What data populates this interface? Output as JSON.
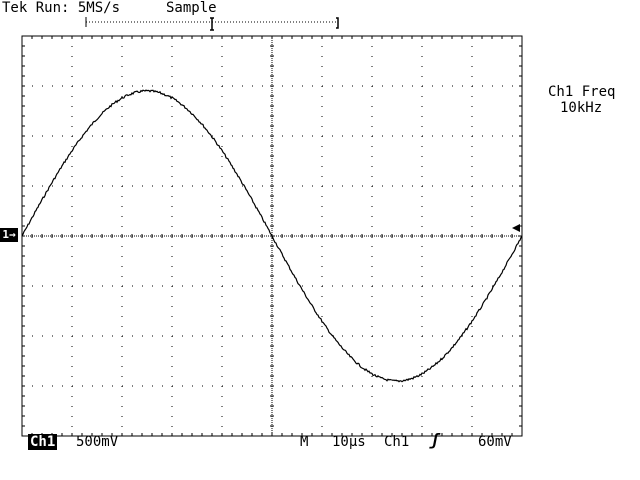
{
  "status": {
    "run_label": "Tek Run: 5MS/s",
    "mode_label": "Sample"
  },
  "side_readout": {
    "title": "Ch1 Freq",
    "value": "10kHz"
  },
  "bottom_bar": {
    "channel_label": "Ch1",
    "volts_per_div": "500mV",
    "timebase_prefix": "M",
    "time_per_div": "10µs",
    "trigger_source": "Ch1",
    "trigger_slope_glyph": "ʃ",
    "trigger_level": "60mV"
  },
  "channel_marker": {
    "label": "1→"
  },
  "display": {
    "trace_color": "#000000",
    "grid_color": "#000000",
    "divisions_x": 10,
    "divisions_y": 8
  }
}
